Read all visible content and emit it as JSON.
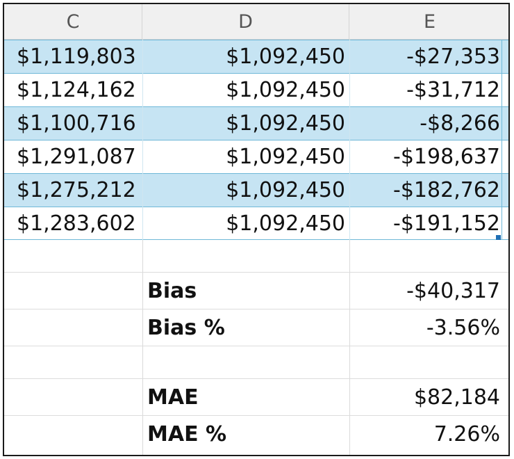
{
  "columns": [
    "C",
    "D",
    "E"
  ],
  "rows": [
    {
      "c": "$1,119,803",
      "d": "$1,092,450",
      "e": "-$27,353"
    },
    {
      "c": "$1,124,162",
      "d": "$1,092,450",
      "e": "-$31,712"
    },
    {
      "c": "$1,100,716",
      "d": "$1,092,450",
      "e": "-$8,266"
    },
    {
      "c": "$1,291,087",
      "d": "$1,092,450",
      "e": "-$198,637"
    },
    {
      "c": "$1,275,212",
      "d": "$1,092,450",
      "e": "-$182,762"
    },
    {
      "c": "$1,283,602",
      "d": "$1,092,450",
      "e": "-$191,152"
    }
  ],
  "summary": {
    "bias_label": "Bias",
    "bias_value": "-$40,317",
    "bias_pct_label": "Bias %",
    "bias_pct_value": "-3.56%",
    "mae_label": "MAE",
    "mae_value": "$82,184",
    "mae_pct_label": "MAE %",
    "mae_pct_value": "7.26%"
  },
  "colors": {
    "band": "#c6e4f3",
    "border": "#6fb8d8",
    "header_bg": "#f0f0f0"
  }
}
